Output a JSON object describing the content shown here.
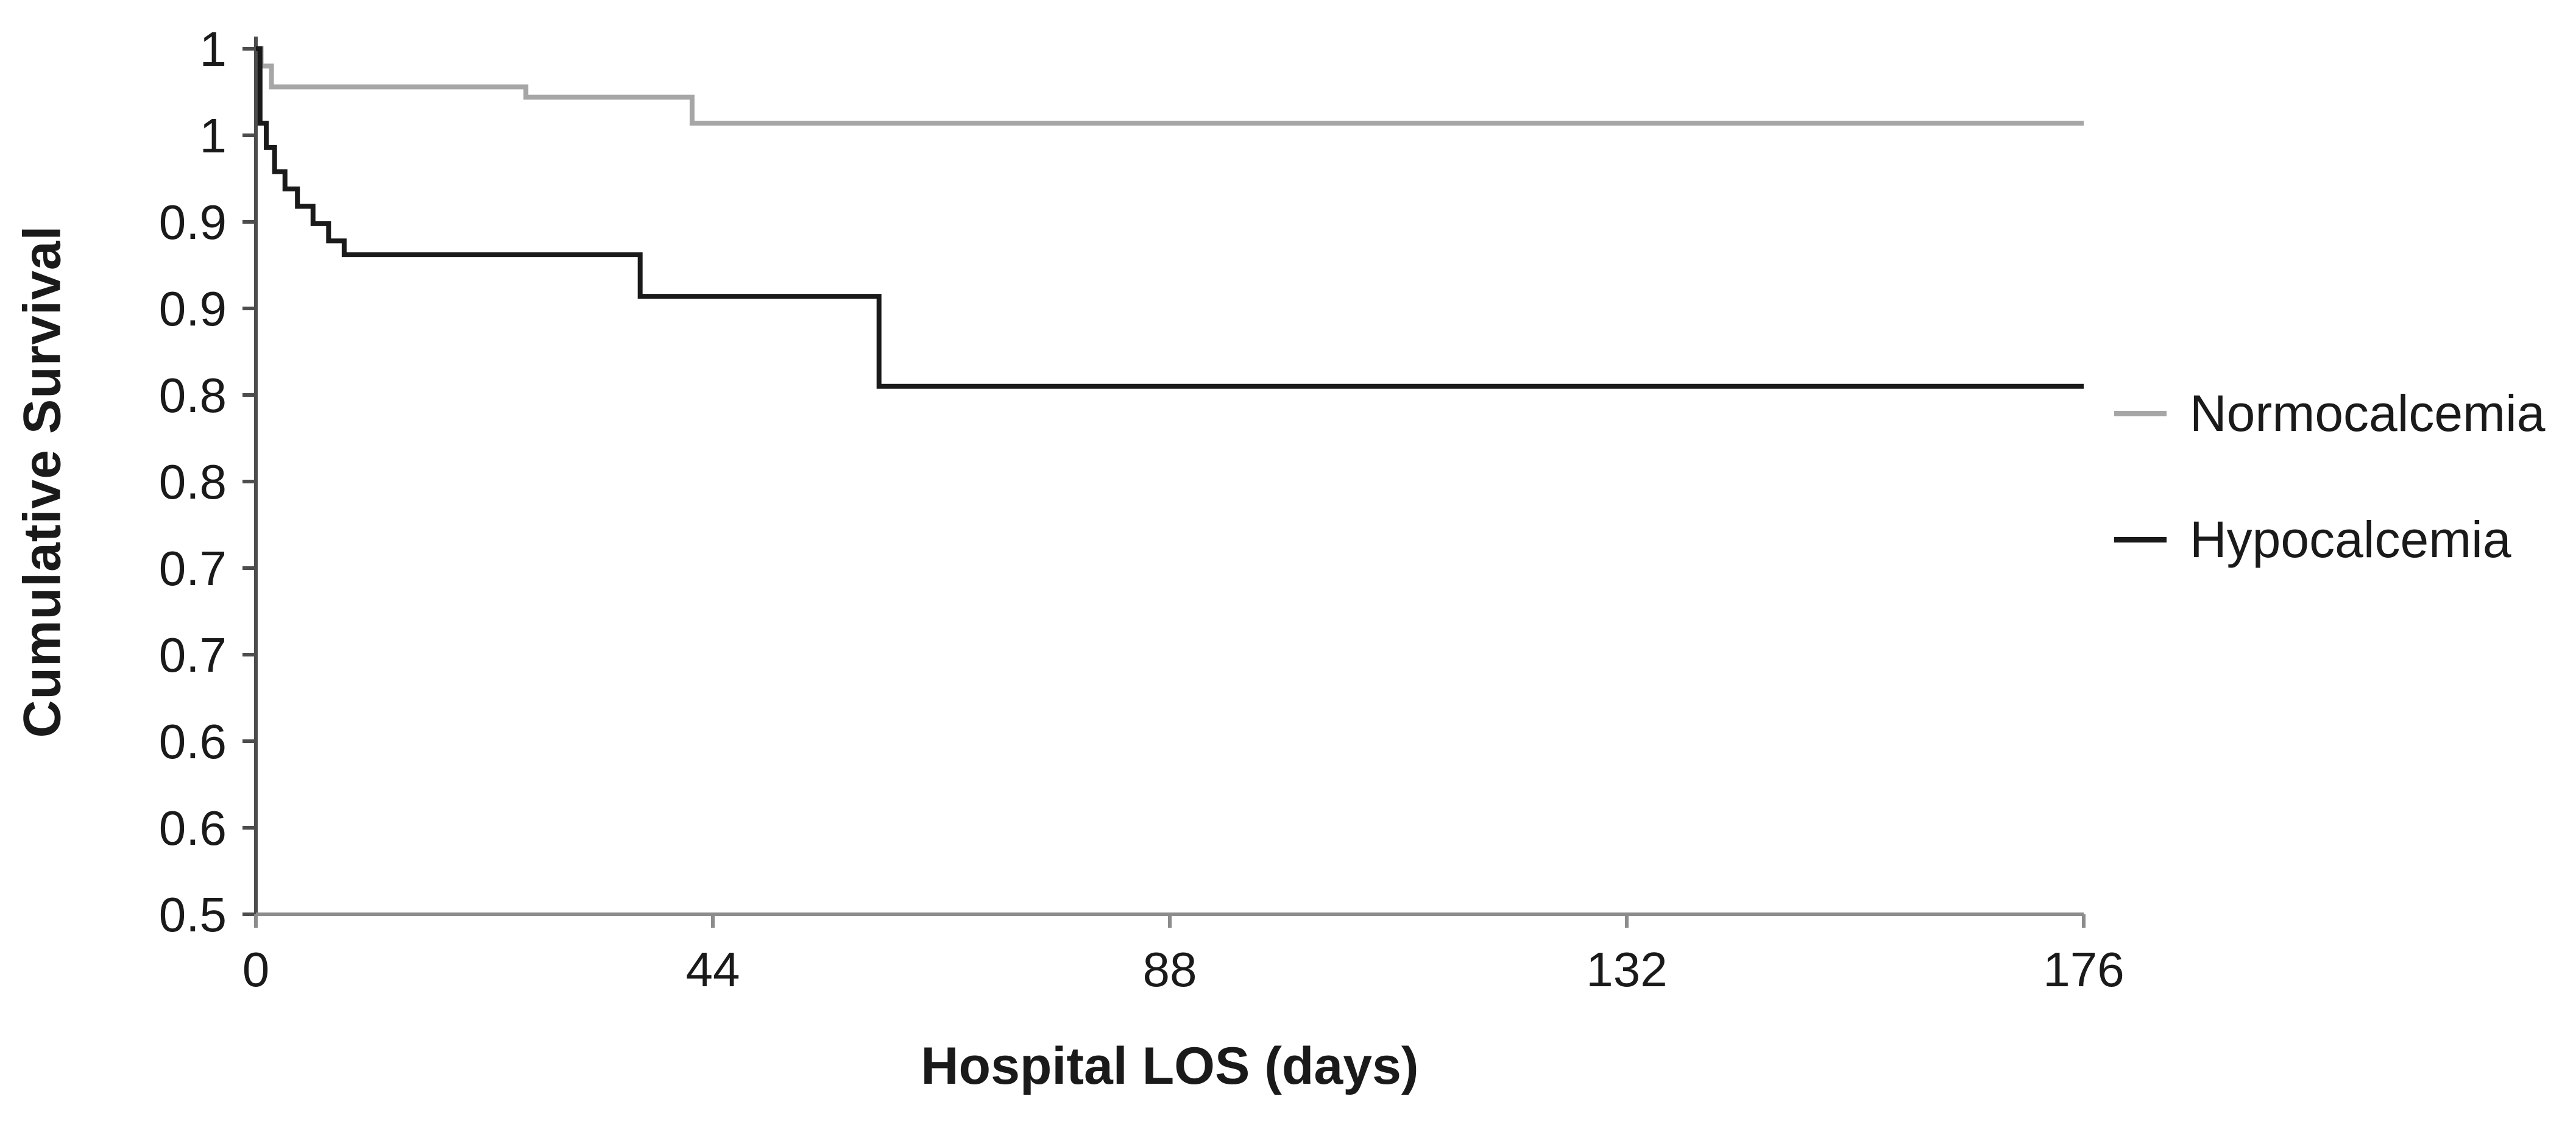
{
  "chart_data": {
    "type": "line",
    "subtype": "kaplan-meier-step",
    "title": "",
    "xlabel": "Hospital LOS (days)",
    "ylabel": "Cumulative Survival",
    "xlim": [
      0,
      176
    ],
    "ylim": [
      0.5,
      1.0
    ],
    "x_ticks": [
      0,
      44,
      88,
      132,
      176
    ],
    "x_tick_labels": [
      "0",
      "44",
      "88",
      "132",
      "176"
    ],
    "y_ticks": [
      1.0,
      0.95,
      0.9,
      0.85,
      0.8,
      0.75,
      0.7,
      0.65,
      0.6,
      0.55,
      0.5
    ],
    "y_tick_labels": [
      "1",
      "1",
      "0.9",
      "0.9",
      "0.8",
      "0.8",
      "0.7",
      "0.7",
      "0.6",
      "0.6",
      "0.5"
    ],
    "grid": false,
    "legend_position": "right-outside",
    "text_color": "#1a1a1a",
    "y_axis_color": "#4d4d4d",
    "x_axis_color": "#8c8c8c",
    "series": [
      {
        "name": "Normocalcemia",
        "color": "#a6a6a6",
        "points": [
          [
            0,
            1.0
          ],
          [
            0.5,
            0.99
          ],
          [
            1.5,
            0.978
          ],
          [
            26,
            0.972
          ],
          [
            42,
            0.957
          ],
          [
            176,
            0.957
          ]
        ]
      },
      {
        "name": "Hypocalcemia",
        "color": "#1a1a1a",
        "points": [
          [
            0,
            1.0
          ],
          [
            0.4,
            0.957
          ],
          [
            1.0,
            0.943
          ],
          [
            1.8,
            0.929
          ],
          [
            2.8,
            0.919
          ],
          [
            4.0,
            0.909
          ],
          [
            5.5,
            0.899
          ],
          [
            7.0,
            0.889
          ],
          [
            8.5,
            0.881
          ],
          [
            37,
            0.857
          ],
          [
            60,
            0.805
          ],
          [
            176,
            0.805
          ]
        ]
      }
    ]
  }
}
